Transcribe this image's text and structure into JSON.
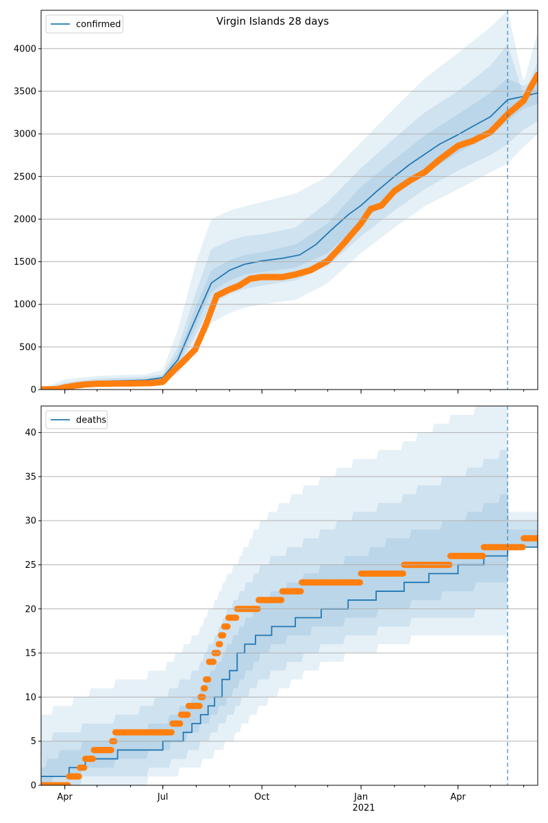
{
  "title": "Virgin Islands 28 days",
  "colors": {
    "line": "#1f77b4",
    "observed": "#ff7f0e",
    "band": "#1f77b4",
    "grid": "#b0b0b0",
    "vline": "#1f77b4"
  },
  "x_axis": {
    "start": "2020-03-10",
    "end": "2021-06-14",
    "ticks": [
      {
        "date": "2020-04-01",
        "label": "Apr"
      },
      {
        "date": "2020-07-01",
        "label": "Jul"
      },
      {
        "date": "2020-10-01",
        "label": "Oct"
      },
      {
        "date": "2021-01-01",
        "label": "Jan"
      },
      {
        "date": "2021-04-01",
        "label": "Apr"
      }
    ],
    "year_label": "2021",
    "forecast_start": "2021-05-17"
  },
  "chart_data": [
    {
      "type": "line",
      "legend": "confirmed",
      "legend_position": "upper-left",
      "ylim": [
        0,
        4450
      ],
      "yticks": [
        0,
        500,
        1000,
        1500,
        2000,
        2500,
        3000,
        3500,
        4000
      ],
      "grid": "horizontal",
      "median": {
        "x": [
          "2020-03-10",
          "2020-04-01",
          "2020-04-20",
          "2020-05-15",
          "2020-06-15",
          "2020-07-01",
          "2020-07-15",
          "2020-08-01",
          "2020-08-15",
          "2020-09-01",
          "2020-09-15",
          "2020-10-01",
          "2020-10-20",
          "2020-11-05",
          "2020-11-20",
          "2020-12-05",
          "2020-12-20",
          "2021-01-01",
          "2021-01-15",
          "2021-02-01",
          "2021-02-15",
          "2021-03-01",
          "2021-03-15",
          "2021-04-01",
          "2021-04-15",
          "2021-05-01",
          "2021-05-17",
          "2021-06-01",
          "2021-06-14"
        ],
        "y": [
          0,
          40,
          85,
          100,
          110,
          140,
          350,
          850,
          1250,
          1400,
          1470,
          1510,
          1540,
          1580,
          1700,
          1880,
          2050,
          2160,
          2320,
          2500,
          2640,
          2760,
          2880,
          2990,
          3090,
          3200,
          3400,
          3440,
          3480
        ]
      },
      "bands": [
        {
          "level": "outer",
          "x": [
            "2020-03-10",
            "2020-04-01",
            "2020-05-01",
            "2020-06-15",
            "2020-07-01",
            "2020-07-15",
            "2020-08-01",
            "2020-08-15",
            "2020-09-01",
            "2020-09-15",
            "2020-10-01",
            "2020-11-01",
            "2020-12-01",
            "2021-01-01",
            "2021-02-01",
            "2021-03-01",
            "2021-04-01",
            "2021-05-01",
            "2021-05-17",
            "2021-06-01",
            "2021-06-14"
          ],
          "lower": [
            0,
            10,
            50,
            80,
            100,
            180,
            450,
            780,
            900,
            960,
            1000,
            1050,
            1250,
            1600,
            1900,
            2150,
            2350,
            2550,
            2650,
            2850,
            3000
          ],
          "upper": [
            5,
            120,
            160,
            180,
            230,
            700,
            1500,
            2000,
            2100,
            2150,
            2200,
            2300,
            2500,
            2900,
            3300,
            3650,
            3950,
            4250,
            4450,
            3600,
            4200
          ]
        },
        {
          "level": "middle",
          "x": [
            "2020-03-10",
            "2020-04-01",
            "2020-05-01",
            "2020-06-15",
            "2020-07-01",
            "2020-07-15",
            "2020-08-01",
            "2020-08-15",
            "2020-09-01",
            "2020-09-15",
            "2020-10-01",
            "2020-11-01",
            "2020-12-01",
            "2021-01-01",
            "2021-02-01",
            "2021-03-01",
            "2021-04-01",
            "2021-05-01",
            "2021-05-17",
            "2021-06-01",
            "2021-06-14"
          ],
          "lower": [
            0,
            20,
            60,
            90,
            115,
            250,
            650,
            1000,
            1120,
            1180,
            1220,
            1280,
            1450,
            1800,
            2100,
            2350,
            2570,
            2750,
            2880,
            3050,
            3150
          ],
          "upper": [
            3,
            80,
            130,
            150,
            180,
            500,
            1150,
            1650,
            1750,
            1800,
            1820,
            1900,
            2200,
            2600,
            2950,
            3250,
            3500,
            3800,
            4050,
            3450,
            3850
          ]
        },
        {
          "level": "inner",
          "x": [
            "2020-03-10",
            "2020-04-01",
            "2020-05-01",
            "2020-06-15",
            "2020-07-01",
            "2020-07-15",
            "2020-08-01",
            "2020-08-15",
            "2020-09-01",
            "2020-09-15",
            "2020-10-01",
            "2020-11-01",
            "2020-12-01",
            "2021-01-01",
            "2021-02-01",
            "2021-03-01",
            "2021-04-01",
            "2021-05-01",
            "2021-05-17",
            "2021-06-01",
            "2021-06-14"
          ],
          "lower": [
            0,
            30,
            80,
            100,
            125,
            300,
            750,
            1150,
            1280,
            1350,
            1380,
            1430,
            1600,
            1960,
            2280,
            2530,
            2780,
            2980,
            3150,
            3300,
            3350
          ],
          "upper": [
            2,
            60,
            110,
            125,
            160,
            420,
            980,
            1400,
            1520,
            1580,
            1610,
            1700,
            1950,
            2380,
            2700,
            2980,
            3230,
            3480,
            3650,
            3560,
            3650
          ]
        }
      ],
      "observed": {
        "x": [
          "2020-03-10",
          "2020-03-25",
          "2020-04-01",
          "2020-04-10",
          "2020-04-20",
          "2020-05-01",
          "2020-05-15",
          "2020-06-01",
          "2020-06-20",
          "2020-07-01",
          "2020-07-10",
          "2020-07-20",
          "2020-07-31",
          "2020-08-10",
          "2020-08-20",
          "2020-08-31",
          "2020-09-10",
          "2020-09-20",
          "2020-10-01",
          "2020-10-20",
          "2020-11-01",
          "2020-11-15",
          "2020-12-01",
          "2020-12-15",
          "2021-01-01",
          "2021-01-10",
          "2021-01-20",
          "2021-02-01",
          "2021-02-15",
          "2021-03-01",
          "2021-03-15",
          "2021-04-01",
          "2021-04-15",
          "2021-05-01",
          "2021-05-17",
          "2021-06-01",
          "2021-06-08",
          "2021-06-14"
        ],
        "y": [
          2,
          5,
          25,
          45,
          60,
          68,
          70,
          72,
          75,
          90,
          210,
          330,
          470,
          760,
          1100,
          1170,
          1220,
          1300,
          1320,
          1320,
          1350,
          1400,
          1510,
          1700,
          1950,
          2120,
          2160,
          2330,
          2450,
          2550,
          2700,
          2860,
          2920,
          3020,
          3230,
          3390,
          3560,
          3690
        ]
      }
    },
    {
      "type": "line",
      "legend": "deaths",
      "legend_position": "upper-left",
      "ylim": [
        0,
        43
      ],
      "yticks": [
        0,
        5,
        10,
        15,
        20,
        25,
        30,
        35,
        40
      ],
      "grid": "horizontal",
      "median": {
        "step": true,
        "x": [
          "2020-03-10",
          "2020-04-05",
          "2020-04-20",
          "2020-05-01",
          "2020-05-20",
          "2020-07-01",
          "2020-07-20",
          "2020-07-28",
          "2020-08-05",
          "2020-08-12",
          "2020-08-18",
          "2020-08-25",
          "2020-09-01",
          "2020-09-08",
          "2020-09-15",
          "2020-09-25",
          "2020-10-10",
          "2020-11-01",
          "2020-11-25",
          "2020-12-20",
          "2021-01-15",
          "2021-02-10",
          "2021-03-05",
          "2021-04-01",
          "2021-04-25",
          "2021-05-17",
          "2021-06-14"
        ],
        "y": [
          1,
          2,
          3,
          3,
          4,
          5,
          6,
          7,
          8,
          9,
          10,
          12,
          13,
          15,
          16,
          17,
          18,
          19,
          20,
          21,
          22,
          23,
          24,
          25,
          26,
          27,
          28
        ]
      },
      "bands": [
        {
          "level": "outer",
          "x": [
            "2020-03-10",
            "2020-04-01",
            "2020-05-01",
            "2020-06-01",
            "2020-07-01",
            "2020-08-01",
            "2020-09-01",
            "2020-10-01",
            "2020-11-01",
            "2020-12-01",
            "2021-01-01",
            "2021-02-01",
            "2021-03-01",
            "2021-04-01",
            "2021-05-01",
            "2021-05-17",
            "2021-05-18",
            "2021-06-14"
          ],
          "lower": [
            0,
            0,
            0,
            0,
            1,
            2,
            5,
            9,
            12,
            14,
            15,
            16,
            17,
            17,
            17,
            17,
            27,
            27
          ],
          "upper": [
            8,
            9,
            11,
            12,
            13,
            17,
            24,
            30,
            33,
            35,
            37,
            38,
            40,
            42,
            43,
            43,
            31,
            31
          ]
        },
        {
          "level": "middle",
          "x": [
            "2020-03-10",
            "2020-04-01",
            "2020-05-01",
            "2020-06-01",
            "2020-07-01",
            "2020-08-01",
            "2020-09-01",
            "2020-10-01",
            "2020-11-01",
            "2020-12-01",
            "2021-01-01",
            "2021-02-01",
            "2021-03-01",
            "2021-04-01",
            "2021-05-01",
            "2021-05-17",
            "2021-05-18",
            "2021-06-14"
          ],
          "lower": [
            0,
            0,
            1,
            1,
            2,
            4,
            8,
            12,
            14,
            16,
            17,
            18,
            19,
            19,
            20,
            20,
            27,
            27
          ],
          "upper": [
            5,
            6,
            7,
            8,
            10,
            13,
            20,
            25,
            27,
            29,
            31,
            32,
            34,
            35,
            37,
            38,
            30,
            30
          ]
        },
        {
          "level": "inner",
          "x": [
            "2020-03-10",
            "2020-04-01",
            "2020-05-01",
            "2020-06-01",
            "2020-07-01",
            "2020-08-01",
            "2020-09-01",
            "2020-10-01",
            "2020-11-01",
            "2020-12-01",
            "2021-01-01",
            "2021-02-01",
            "2021-03-01",
            "2021-04-01",
            "2021-05-01",
            "2021-05-17",
            "2021-05-18",
            "2021-06-14"
          ],
          "lower": [
            0,
            1,
            2,
            3,
            4,
            6,
            10,
            15,
            17,
            18,
            19,
            20,
            21,
            22,
            23,
            23,
            27,
            27
          ],
          "upper": [
            2,
            4,
            5,
            6,
            7,
            10,
            16,
            21,
            23,
            25,
            26,
            28,
            29,
            30,
            32,
            33,
            29,
            29
          ]
        }
      ],
      "observed": {
        "step": true,
        "x": [
          "2020-03-10",
          "2020-04-05",
          "2020-04-15",
          "2020-04-20",
          "2020-04-28",
          "2020-05-15",
          "2020-05-18",
          "2020-07-10",
          "2020-07-18",
          "2020-07-25",
          "2020-08-05",
          "2020-08-08",
          "2020-08-10",
          "2020-08-13",
          "2020-08-18",
          "2020-08-22",
          "2020-08-24",
          "2020-08-27",
          "2020-08-31",
          "2020-09-08",
          "2020-09-28",
          "2020-10-20",
          "2020-11-07",
          "2020-11-10",
          "2021-01-01",
          "2021-02-10",
          "2021-03-25",
          "2021-04-25",
          "2021-06-01",
          "2021-06-14"
        ],
        "y": [
          0,
          1,
          2,
          3,
          4,
          5,
          6,
          7,
          8,
          9,
          10,
          11,
          12,
          14,
          15,
          16,
          17,
          18,
          19,
          20,
          21,
          22,
          23,
          23,
          24,
          25,
          26,
          27,
          28,
          28
        ]
      }
    }
  ]
}
